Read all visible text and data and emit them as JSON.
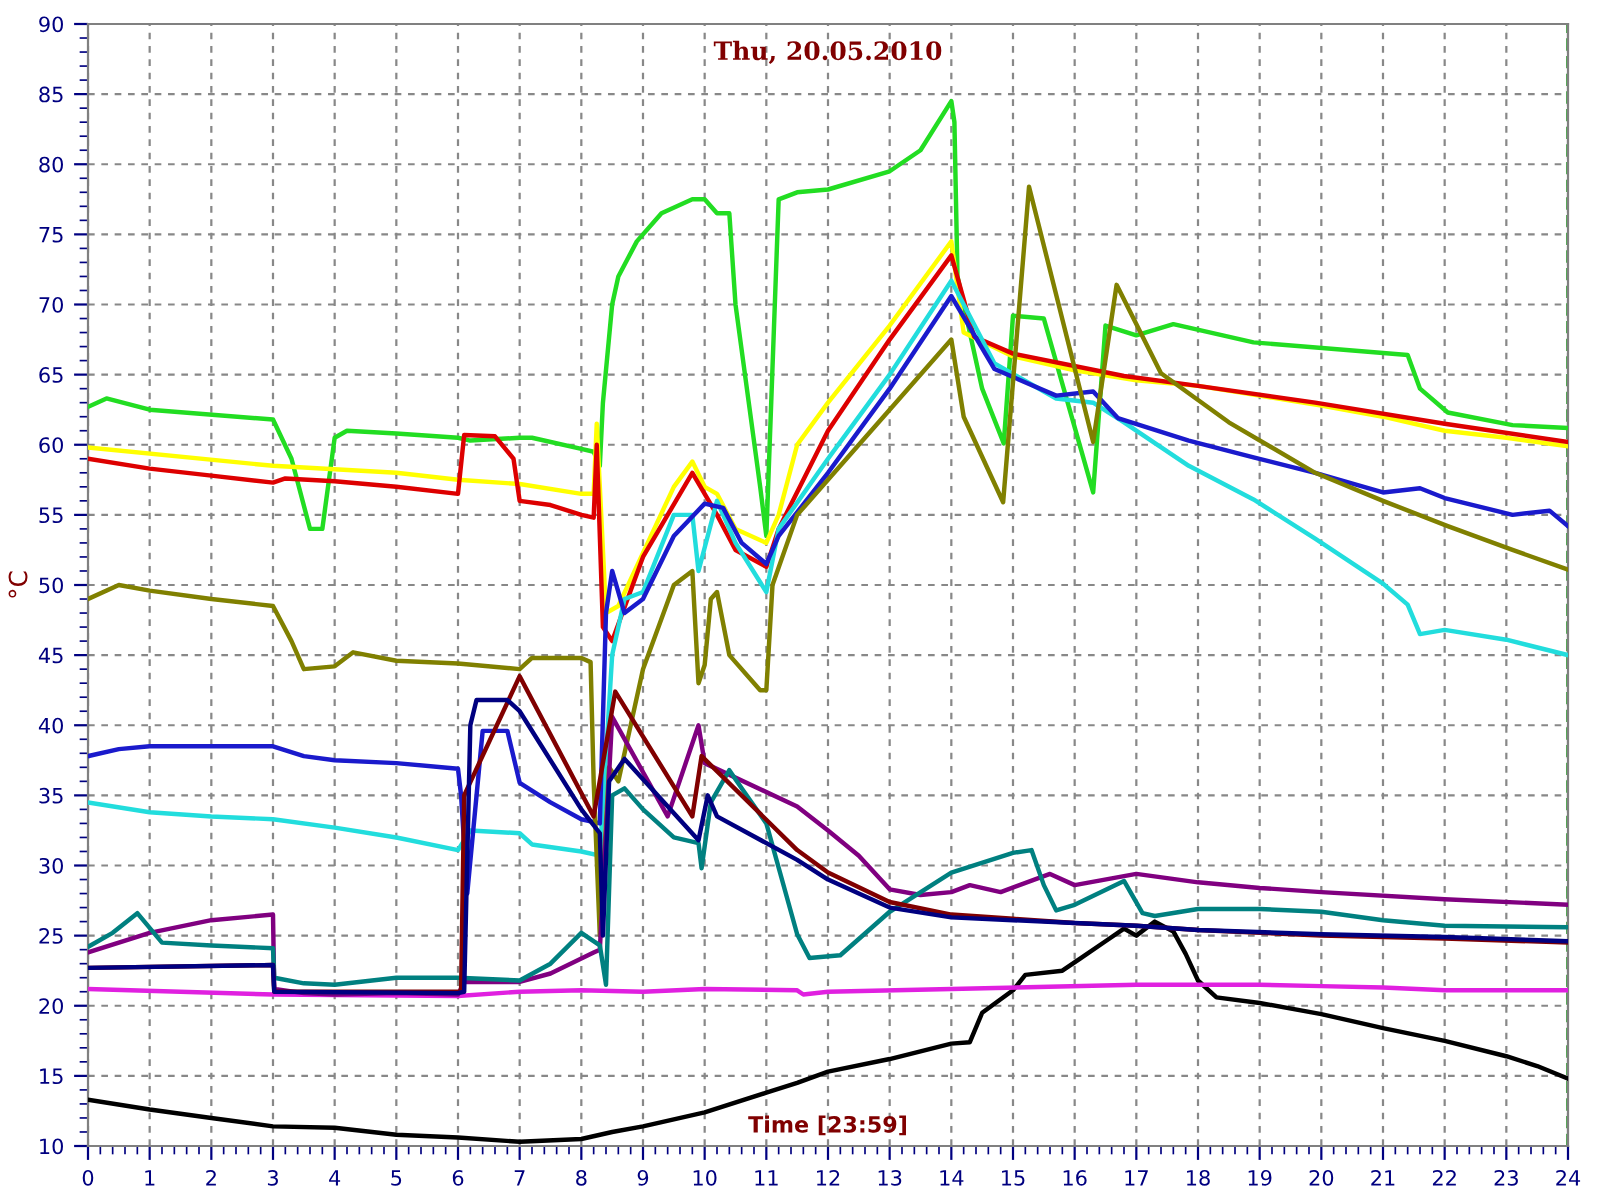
{
  "chart_data": {
    "type": "line",
    "title": "Thu, 20.05.2010",
    "xlabel": "Time [23:59]",
    "ylabel": "°C",
    "xlim": [
      0,
      24
    ],
    "xticks": [
      0,
      1,
      2,
      3,
      4,
      5,
      6,
      7,
      8,
      9,
      10,
      11,
      12,
      13,
      14,
      15,
      16,
      17,
      18,
      19,
      20,
      21,
      22,
      23,
      24
    ],
    "ylim": [
      10,
      90
    ],
    "yticks": [
      10,
      15,
      20,
      25,
      30,
      35,
      40,
      45,
      50,
      55,
      60,
      65,
      70,
      75,
      80,
      85,
      90
    ],
    "grid": true,
    "legend": false,
    "marker": "none",
    "line_style": "solid",
    "ref_lines": [
      {
        "axis": "x",
        "value": 24,
        "color": "#008000",
        "line_style": "dashed"
      }
    ],
    "series": [
      {
        "color": "#22dd22",
        "x": [
          0,
          0.3,
          1,
          3,
          3.3,
          3.6,
          3.8,
          4,
          4.2,
          5,
          6,
          6.2,
          7,
          7.2,
          8,
          8.2,
          8.3,
          8.35,
          8.5,
          8.6,
          8.9,
          9.3,
          9.8,
          10,
          10.2,
          10.4,
          10.5,
          10.9,
          11.0,
          11.2,
          11.5,
          12,
          13,
          13.5,
          14,
          14.05,
          14.1,
          14.5,
          14.85,
          15.0,
          15.5,
          16.3,
          16.5,
          17,
          17.6,
          18.9,
          21.4,
          21.6,
          22.05,
          23.1,
          24
        ],
        "values": [
          62.7,
          63.3,
          62.5,
          61.8,
          59,
          54,
          54,
          60.5,
          61,
          60.8,
          60.5,
          60.3,
          60.5,
          60.5,
          59.7,
          59.5,
          58.5,
          63,
          70,
          72,
          74.5,
          76.5,
          77.5,
          77.5,
          76.5,
          76.5,
          70,
          57,
          53.5,
          77.5,
          78,
          78.2,
          79.5,
          81,
          84.5,
          83,
          72,
          64,
          60.1,
          69.2,
          69,
          56.6,
          68.5,
          67.8,
          68.6,
          67.3,
          66.4,
          64,
          62.3,
          61.4,
          61.2
        ]
      },
      {
        "color": "#ffff00",
        "x": [
          0,
          3,
          5,
          6,
          7,
          8,
          8.2,
          8.25,
          8.4,
          8.6,
          9.5,
          9.8,
          10,
          10.2,
          10.5,
          11.0,
          11.2,
          11.5,
          12,
          13,
          14,
          14.2,
          15,
          16,
          17,
          18,
          19,
          20,
          21,
          22,
          23,
          24
        ],
        "values": [
          59.8,
          58.5,
          58,
          57.5,
          57.2,
          56.5,
          56.5,
          61.5,
          48,
          48.5,
          57,
          58.8,
          57,
          56.5,
          54,
          53,
          55,
          60,
          63,
          68.5,
          74.5,
          68,
          66.3,
          65.3,
          64.6,
          64.2,
          63.5,
          62.8,
          62,
          61,
          60.5,
          59.9
        ]
      },
      {
        "color": "#dd0000",
        "x": [
          0,
          1,
          2,
          3,
          3.2,
          4,
          5,
          6,
          6.1,
          6.6,
          6.9,
          7,
          7.5,
          8,
          8.2,
          8.25,
          8.35,
          8.5,
          9,
          9.8,
          10.2,
          10.5,
          11,
          11.2,
          12,
          13,
          14,
          14.37,
          15,
          16.8,
          18,
          19.9,
          22,
          24
        ],
        "values": [
          59,
          58.3,
          57.8,
          57.3,
          57.6,
          57.4,
          57,
          56.5,
          60.7,
          60.6,
          59,
          56,
          55.7,
          55,
          54.8,
          60,
          47,
          46,
          52,
          58,
          55,
          52.5,
          51.3,
          54,
          61,
          67.5,
          73.5,
          67.7,
          66.5,
          64.9,
          64.2,
          63,
          61.5,
          60.2
        ]
      },
      {
        "color": "#22dddd",
        "x": [
          0,
          1,
          2,
          3,
          4,
          5,
          6,
          6.2,
          7,
          7.2,
          8,
          8.3,
          8.5,
          8.7,
          9,
          9.5,
          9.8,
          9.9,
          10.2,
          10.5,
          11,
          11.2,
          12,
          13,
          14,
          14.7,
          15.7,
          16.3,
          16.8,
          17.85,
          18.9,
          19.9,
          21,
          21.4,
          21.6,
          22,
          23,
          24
        ],
        "values": [
          34.5,
          33.8,
          33.5,
          33.3,
          32.7,
          32,
          31.1,
          32.5,
          32.3,
          31.5,
          31,
          30.7,
          45,
          49,
          49.5,
          55,
          55,
          51,
          56,
          53,
          49.5,
          54,
          59,
          65,
          71.7,
          65.8,
          63.3,
          63,
          61.6,
          58.5,
          56.1,
          53.3,
          50.1,
          48.6,
          46.5,
          46.8,
          46.1,
          45
        ]
      },
      {
        "color": "#1a1acc",
        "x": [
          0,
          0.5,
          1,
          3,
          3.5,
          4,
          5,
          6,
          6.05,
          6.15,
          6.4,
          6.8,
          7,
          7.5,
          8,
          8.3,
          8.4,
          8.5,
          8.7,
          9,
          9.5,
          10,
          10.3,
          10.6,
          11,
          11.2,
          12,
          13,
          14,
          14.7,
          15.7,
          16.3,
          16.7,
          17.85,
          18.9,
          19.9,
          21,
          21.6,
          22,
          23.1,
          23.7,
          24
        ],
        "values": [
          37.8,
          38.3,
          38.5,
          38.5,
          37.8,
          37.5,
          37.3,
          36.9,
          35,
          28,
          39.6,
          39.6,
          35.9,
          34.5,
          33.3,
          33,
          48,
          51,
          48,
          49,
          53.5,
          55.8,
          55.5,
          53,
          51.5,
          53.5,
          58,
          64,
          70.6,
          65.4,
          63.5,
          63.8,
          61.9,
          60.3,
          59.1,
          58,
          56.6,
          56.9,
          56.2,
          55,
          55.3,
          54.2
        ]
      },
      {
        "color": "#808000",
        "x": [
          0,
          0.5,
          1,
          2,
          3,
          3.3,
          3.5,
          4,
          4.3,
          5,
          6,
          7,
          7.2,
          8,
          8.15,
          8.2,
          8.3,
          8.45,
          8.6,
          9,
          9.5,
          9.8,
          9.9,
          10,
          10.1,
          10.2,
          10.4,
          10.9,
          11,
          11.1,
          11.5,
          12,
          13,
          14,
          14.2,
          14.84,
          15.26,
          16.3,
          16.68,
          17.4,
          18.5,
          19.9,
          21,
          22.05,
          23.1,
          24
        ],
        "values": [
          49,
          50,
          49.6,
          49,
          48.5,
          46,
          44,
          44.2,
          45.2,
          44.6,
          44.4,
          44,
          44.8,
          44.8,
          44.5,
          36,
          25,
          37,
          36,
          44,
          50,
          51,
          43,
          44.3,
          49,
          49.5,
          45,
          42.5,
          42.5,
          50,
          55,
          57.5,
          62.5,
          67.5,
          62,
          55.9,
          78.4,
          60.2,
          71.4,
          65.1,
          61.6,
          58,
          56,
          54.2,
          52.5,
          51.1
        ]
      },
      {
        "color": "#000000",
        "x": [
          0,
          1,
          2,
          3,
          4,
          5,
          6,
          7,
          8,
          8.5,
          9,
          10,
          11,
          11.5,
          12,
          13,
          14,
          14.3,
          14.5,
          15,
          15.2,
          15.8,
          16.1,
          16.5,
          16.8,
          17,
          17.3,
          17.6,
          17.8,
          18,
          18.3,
          19,
          20,
          21,
          22,
          23,
          23.5,
          24
        ],
        "values": [
          13.3,
          12.6,
          12,
          11.4,
          11.3,
          10.8,
          10.6,
          10.3,
          10.5,
          11,
          11.4,
          12.4,
          13.8,
          14.5,
          15.3,
          16.2,
          17.3,
          17.4,
          19.5,
          21.1,
          22.2,
          22.5,
          23.4,
          24.6,
          25.5,
          25,
          26,
          25.3,
          23.7,
          21.8,
          20.6,
          20.2,
          19.4,
          18.4,
          17.5,
          16.4,
          15.7,
          14.8
        ]
      },
      {
        "color": "#e020e0",
        "x": [
          0,
          3,
          6,
          7,
          8,
          9,
          10,
          11.5,
          11.6,
          12,
          14,
          17,
          19,
          20,
          21,
          22,
          24
        ],
        "values": [
          21.2,
          20.8,
          20.7,
          21,
          21.1,
          21,
          21.2,
          21.1,
          20.8,
          21,
          21.2,
          21.5,
          21.5,
          21.4,
          21.3,
          21.1,
          21.1
        ]
      },
      {
        "color": "#800080",
        "x": [
          0,
          1,
          2,
          3,
          3.02,
          3.5,
          4,
          5,
          6,
          6.1,
          7,
          7.5,
          8.2,
          8.3,
          8.5,
          9.4,
          9.9,
          10,
          11.5,
          12,
          12.5,
          13,
          13.5,
          14,
          14.3,
          14.8,
          15.6,
          16,
          17,
          18,
          19,
          20,
          22,
          24
        ],
        "values": [
          23.8,
          25.2,
          26.1,
          26.5,
          21.2,
          20.9,
          20.8,
          20.9,
          20.8,
          21.7,
          21.7,
          22.3,
          23.8,
          24,
          40.6,
          33.5,
          40,
          37.3,
          34.2,
          32.5,
          30.7,
          28.3,
          27.9,
          28.1,
          28.6,
          28.1,
          29.4,
          28.6,
          29.4,
          28.8,
          28.4,
          28.1,
          27.6,
          27.2
        ]
      },
      {
        "color": "#008080",
        "x": [
          0,
          0.4,
          0.8,
          1.2,
          2,
          3,
          3.02,
          3.5,
          4,
          5,
          6,
          7,
          7.5,
          8,
          8.3,
          8.4,
          8.5,
          8.7,
          9,
          9.5,
          9.9,
          9.95,
          10.1,
          10.4,
          10.6,
          11,
          11.5,
          11.7,
          12.2,
          13,
          14,
          15,
          15.3,
          15.5,
          15.7,
          16,
          16.8,
          17.1,
          17.3,
          18,
          19,
          20,
          21,
          22,
          24
        ],
        "values": [
          24.2,
          25.2,
          26.6,
          24.5,
          24.3,
          24.1,
          22,
          21.6,
          21.5,
          22,
          22,
          21.8,
          23,
          25.2,
          24.3,
          21.5,
          35,
          35.5,
          34,
          32,
          31.6,
          29.8,
          34.5,
          36.8,
          35.5,
          33,
          25.1,
          23.4,
          23.6,
          26.7,
          29.5,
          30.9,
          31.1,
          28.6,
          26.8,
          27.2,
          28.9,
          26.6,
          26.4,
          26.9,
          26.9,
          26.7,
          26.1,
          25.7,
          25.6
        ]
      },
      {
        "color": "#800000",
        "x": [
          0,
          3,
          3.02,
          6,
          6.05,
          6.1,
          7,
          8.2,
          8.55,
          9.8,
          9.95,
          11.5,
          12,
          13,
          14,
          15,
          16,
          17,
          18,
          20,
          22,
          24
        ],
        "values": [
          22.7,
          22.9,
          21,
          21,
          21,
          35,
          43.5,
          33.5,
          42.4,
          33.5,
          37.8,
          31.1,
          29.5,
          27.4,
          26.5,
          26.2,
          25.9,
          25.7,
          25.4,
          25,
          24.8,
          24.5
        ]
      },
      {
        "color": "#000080",
        "x": [
          0,
          3,
          3.02,
          6,
          6.1,
          6.2,
          6.3,
          6.8,
          7,
          8,
          8.3,
          8.35,
          8.45,
          8.7,
          9.9,
          10.05,
          10.2,
          11.5,
          12,
          13,
          14,
          15,
          16,
          17,
          18,
          20,
          22,
          24
        ],
        "values": [
          22.7,
          22.9,
          21,
          20.9,
          21,
          40,
          41.8,
          41.8,
          41,
          34,
          32.3,
          25,
          36,
          37.6,
          31.8,
          35,
          33.5,
          30.4,
          29,
          27,
          26.3,
          26.1,
          25.9,
          25.7,
          25.4,
          25.1,
          24.9,
          24.6
        ]
      }
    ]
  }
}
